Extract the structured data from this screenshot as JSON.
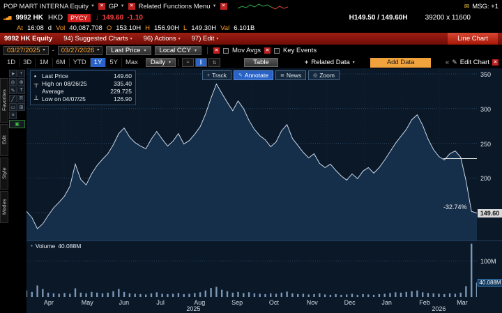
{
  "icons": {
    "caret": "▼",
    "dd": "▾",
    "close": "×",
    "envelope": "✉",
    "bars": "▂▄▆",
    "pencil": "✎",
    "double_left": "«",
    "plus": "+",
    "line_type": "≈",
    "candle_type": "||",
    "compare_type": "⇅",
    "square": "▪",
    "down_arrow": "↓"
  },
  "top_bar": {
    "security_menu": "POP MART INTERNA Equity",
    "function_menu": "GP",
    "related_menu": "Related Functions Menu",
    "msg_label": "MSG: +1"
  },
  "quote_row": {
    "ticker": "9992 HK",
    "currency": "HKD",
    "badge": "PYCY",
    "direction": "↓",
    "price": "149.60",
    "change": "-1.10",
    "bid_ask": "H149.50 / 149.60H",
    "lot_size": "39200 x 11600"
  },
  "stats_row": {
    "at_label": "At",
    "time": "16:08",
    "d": "d",
    "vol_label": "Vol",
    "volume": "40,087,708",
    "o_label": "O",
    "open": "153.10H",
    "h_label": "H",
    "high": "156.90H",
    "l_label": "L",
    "low": "149.30H",
    "val_label": "Val",
    "value": "6.101B"
  },
  "red_bar": {
    "title": "9992 HK Equity",
    "items": [
      "94) Suggested Charts",
      "96) Actions",
      "97) Edit"
    ],
    "right_button": "Line Chart"
  },
  "settings_row": {
    "date_from": "03/27/2025",
    "date_separator": "-",
    "date_to": "03/27/2026",
    "study": "Last Price",
    "currency": "Local CCY",
    "mov_avgs": "Mov Avgs",
    "key_events": "Key Events"
  },
  "toolbar": {
    "ranges": [
      "1D",
      "3D",
      "1M",
      "6M",
      "YTD",
      "1Y",
      "5Y",
      "Max"
    ],
    "selected_range": "1Y",
    "period": "Daily",
    "table_label": "Table",
    "related_data": "Related Data",
    "add_data": "Add Data",
    "edit_chart": "Edit Chart"
  },
  "sidebar": {
    "tabs": [
      "Favorites",
      "Edit",
      "Style",
      "Modes"
    ],
    "tools": [
      {
        "name": "cursor-icon",
        "glyph": "➤"
      },
      {
        "name": "crosshair-icon",
        "glyph": "+"
      },
      {
        "name": "zoom-icon",
        "glyph": "◎"
      },
      {
        "name": "hand-icon",
        "glyph": "⊕"
      },
      {
        "name": "pencil-icon",
        "glyph": "✎"
      },
      {
        "name": "text-icon",
        "glyph": "T"
      },
      {
        "name": "trendline-icon",
        "glyph": "╱"
      },
      {
        "name": "ruler-icon",
        "glyph": "R"
      },
      {
        "name": "note-icon",
        "glyph": "▭"
      },
      {
        "name": "grid-icon",
        "glyph": "⊞"
      },
      {
        "name": "list-icon",
        "glyph": "≡"
      },
      {
        "name": "snapshot-icon",
        "glyph": "▣"
      }
    ]
  },
  "chart": {
    "legend": [
      {
        "marker": "▪",
        "label": "Last Price",
        "value": "149.60"
      },
      {
        "marker": "┬",
        "label": "High on 08/26/25",
        "value": "335.40"
      },
      {
        "marker": "",
        "label": "Average",
        "value": "229.725"
      },
      {
        "marker": "┴",
        "label": "Low on 04/07/25",
        "value": "126.90"
      }
    ],
    "buttons": [
      {
        "label": "Track",
        "glyph": "+",
        "selected": false
      },
      {
        "label": "Annotate",
        "glyph": "✎",
        "selected": true
      },
      {
        "label": "News",
        "glyph": "≣",
        "selected": false
      },
      {
        "label": "Zoom",
        "glyph": "◎",
        "selected": false
      }
    ],
    "price_badge": "149.60",
    "volume_legend_label": "Volume",
    "volume_legend_value": "40.088M"
  },
  "chart_data": {
    "type": "area",
    "x_range": [
      "03/27/2025",
      "03/27/2026"
    ],
    "x_month_labels": [
      "Apr",
      "May",
      "Jun",
      "Jul",
      "Aug",
      "Sep",
      "Oct",
      "Nov",
      "Dec",
      "Jan",
      "Feb",
      "Mar"
    ],
    "year_labels": [
      "2025",
      "2026"
    ],
    "y_tick_labels": [
      "350",
      "300",
      "250",
      "200"
    ],
    "ylim": [
      110,
      358
    ],
    "grid_levels": [
      350,
      300,
      250,
      200,
      150
    ],
    "series": [
      {
        "name": "Last Price",
        "values": [
          152,
          143,
          127,
          134,
          146,
          157,
          165,
          174,
          188,
          220,
          198,
          190,
          206,
          218,
          227,
          235,
          248,
          264,
          272,
          259,
          251,
          246,
          242,
          256,
          267,
          256,
          246,
          253,
          264,
          249,
          254,
          263,
          274,
          292,
          315,
          335.4,
          322,
          309,
          297,
          311,
          300,
          283,
          270,
          261,
          255,
          245,
          252,
          268,
          277,
          257,
          247,
          237,
          229,
          235,
          221,
          215,
          220,
          211,
          203,
          197,
          206,
          199,
          210,
          215,
          207,
          215,
          226,
          238,
          250,
          260,
          270,
          284,
          291,
          276,
          256,
          241,
          231,
          226,
          235,
          239,
          230,
          196,
          152,
          149.6
        ]
      }
    ],
    "stats": {
      "last": 149.6,
      "high": 335.4,
      "high_date": "08/26/25",
      "average": 229.725,
      "low": 126.9,
      "low_date": "04/07/25"
    },
    "annotation": {
      "label": "-32.74%",
      "ref_price": 228
    },
    "volume": {
      "name": "Volume",
      "unit": "M",
      "ylim": [
        0,
        155
      ],
      "grid_level": 100,
      "grid_label": "100M",
      "last": 40.088,
      "badge": "40.088M",
      "values": [
        18,
        14,
        32,
        22,
        12,
        10,
        9,
        11,
        9,
        24,
        12,
        10,
        14,
        12,
        10,
        12,
        16,
        22,
        14,
        10,
        9,
        8,
        7,
        10,
        13,
        9,
        8,
        9,
        11,
        8,
        9,
        11,
        13,
        18,
        25,
        28,
        20,
        16,
        12,
        14,
        11,
        13,
        10,
        9,
        8,
        10,
        9,
        12,
        15,
        10,
        8,
        9,
        7,
        8,
        10,
        7,
        6,
        8,
        6,
        7,
        9,
        6,
        8,
        7,
        6,
        8,
        9,
        11,
        13,
        12,
        14,
        16,
        18,
        13,
        11,
        10,
        9,
        8,
        10,
        9,
        12,
        30,
        148,
        40
      ]
    }
  }
}
